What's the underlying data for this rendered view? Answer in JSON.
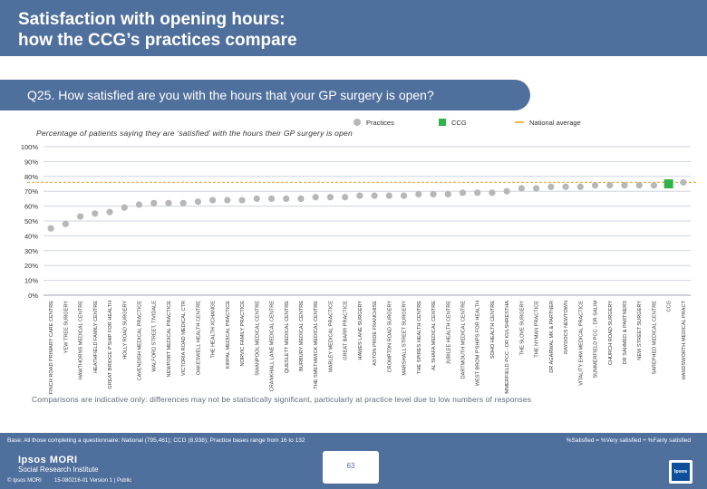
{
  "header": {
    "title_line1": "Satisfaction with opening hours:",
    "title_line2": "how the CCG’s practices compare"
  },
  "question": "Q25. How satisfied are you with the hours that your GP surgery is open?",
  "subtitle": "Percentage of patients saying they are ‘satisfied’ with the hours their GP surgery is open",
  "legend": {
    "practices": "Practices",
    "ccg": "CCG",
    "national": "National average"
  },
  "colors": {
    "practices": "#b7b7b7",
    "ccg": "#2fb34a",
    "national": "#e9b64b",
    "brand": "#4f6f9c"
  },
  "chart_data": {
    "type": "scatter",
    "title": "Q25. How satisfied are you with the hours that your GP surgery is open?",
    "ylabel": "Percentage of patients saying they are ‘satisfied’",
    "ylim": [
      0,
      100
    ],
    "yticks": [
      "0%",
      "10%",
      "20%",
      "30%",
      "40%",
      "50%",
      "60%",
      "70%",
      "80%",
      "90%",
      "100%"
    ],
    "national_average": 76,
    "categories": [
      "FINCH ROAD PRIMARY CARE CENTRE",
      "YEW TREE SURGERY",
      "HAWTHORNS MEDICAL CENTRE",
      "HEATHFIELD FAMILY CENTRE",
      "GREAT BRIDGE P'SHIP FOR HEALTH",
      "HOLLY ROAD SURGERY",
      "CAVENDISH MEDICAL PRACTICE",
      "WALFORD STREET, TIVIDALE",
      "NEWPORT MEDICAL PRACTICE",
      "VICTORIA ROAD MEDICAL CTR",
      "OAKESWELL HEALTH CENTRE",
      "THE HEALTH XCHANGE",
      "KIRPAL MEDICAL PRACTICE",
      "NORVIC FAMILY PRACTICE",
      "SWANPOOL MEDICAL CENTRE",
      "CRANKHALL LANE MEDICAL CENTRE",
      "QUESLETT MEDICAL CENTRE",
      "BURBURY MEDICAL CENTRE",
      "THE SMETHWICK MEDICAL CENTRE",
      "MARLEY MEDICAL PRACTICE",
      "GREAT BARR PRACTICE",
      "HAWES LANE SURGERY",
      "ASTON PRIDE FRANCHISE",
      "CROMPTON ROAD SURGERY",
      "MARSHALL STREET SURGERY",
      "THE SPIRES HEALTH CENTRE",
      "AL SHAFA MEDICAL CENTRE",
      "JUBILEE HEALTH CENTRE",
      "DARTMOUTH MEDICAL CENTRE",
      "WEST BROM P'SHIPS FOR HEALTH",
      "SOHO HEALTH CENTRE",
      "SUMMERFIELD PCC - DR KULSHRESTHA",
      "THE SLOVE SURGERY",
      "THE NYMAN PRACTICE",
      "DR AGARWAL MK & PARTNER",
      "RAYDOCS NEWTOWN",
      "VITALITY EHM MEDICAL PRACTICE",
      "SUMMERFIELD PCC - DR SALIM",
      "CHURCH ROAD SURGERY",
      "DR SAHMED & PARTNERS",
      "NEW STREET SURGERY",
      "SAREPHED MEDICAL CENTRE",
      "CCG",
      "HANDSWORTH MEDICAL PRACT"
    ],
    "values": [
      45,
      48,
      53,
      55,
      56,
      59,
      61,
      62,
      62,
      62,
      63,
      64,
      64,
      64,
      65,
      65,
      65,
      65,
      66,
      66,
      66,
      67,
      67,
      67,
      67,
      68,
      68,
      68,
      69,
      69,
      69,
      70,
      72,
      72,
      73,
      73,
      73,
      74,
      74,
      74,
      74,
      74,
      75,
      76
    ],
    "highlight": "CCG"
  },
  "note": "Comparisons are indicative only: differences may not be statistically significant, particularly at practice level due to low numbers of responses",
  "footer": {
    "base": "Base: All those completing a questionnaire: National (795,461); CCG (8,938); Practice bases range from 16 to 132",
    "sat_note": "%Satisfied = %Very satisfied + %Fairly satisfied",
    "brand": "Ipsos MORI",
    "institute": "Social Research Institute",
    "copyright": "© Ipsos MORI",
    "job_ref": "15-080216-01 Version 1 | Public",
    "page": "63",
    "logo_text": "Ipsos"
  }
}
